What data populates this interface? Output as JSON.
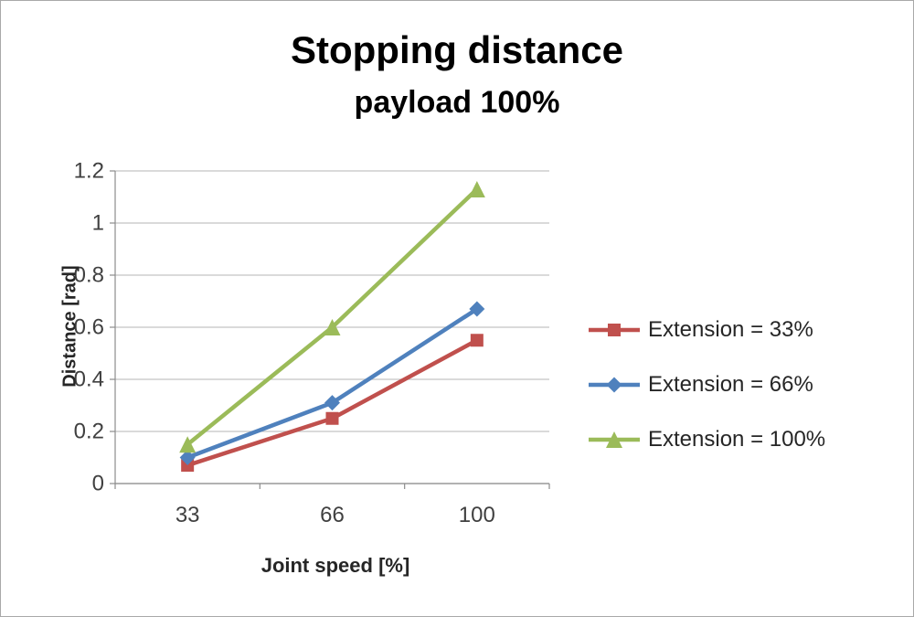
{
  "chart_data": {
    "type": "line",
    "title": "Stopping distance",
    "subtitle": "payload 100%",
    "xlabel": "Joint speed [%]",
    "ylabel": "Distance [rad]",
    "categories": [
      "33",
      "66",
      "100"
    ],
    "y_ticks": [
      "0",
      "0.2",
      "0.4",
      "0.6",
      "0.8",
      "1",
      "1.2"
    ],
    "ylim": [
      0,
      1.2
    ],
    "grid": true,
    "legend_position": "right",
    "series": [
      {
        "name": "Extension = 33%",
        "color": "#C0504D",
        "marker": "square",
        "values": [
          0.07,
          0.25,
          0.55
        ]
      },
      {
        "name": "Extension = 66%",
        "color": "#4F81BD",
        "marker": "diamond",
        "values": [
          0.1,
          0.31,
          0.67
        ]
      },
      {
        "name": "Extension = 100%",
        "color": "#9BBB59",
        "marker": "triangle",
        "values": [
          0.15,
          0.6,
          1.13
        ]
      }
    ],
    "colors": {
      "grid": "#C3C3C3",
      "axis": "#8C8C8C",
      "text": "#404040"
    }
  }
}
